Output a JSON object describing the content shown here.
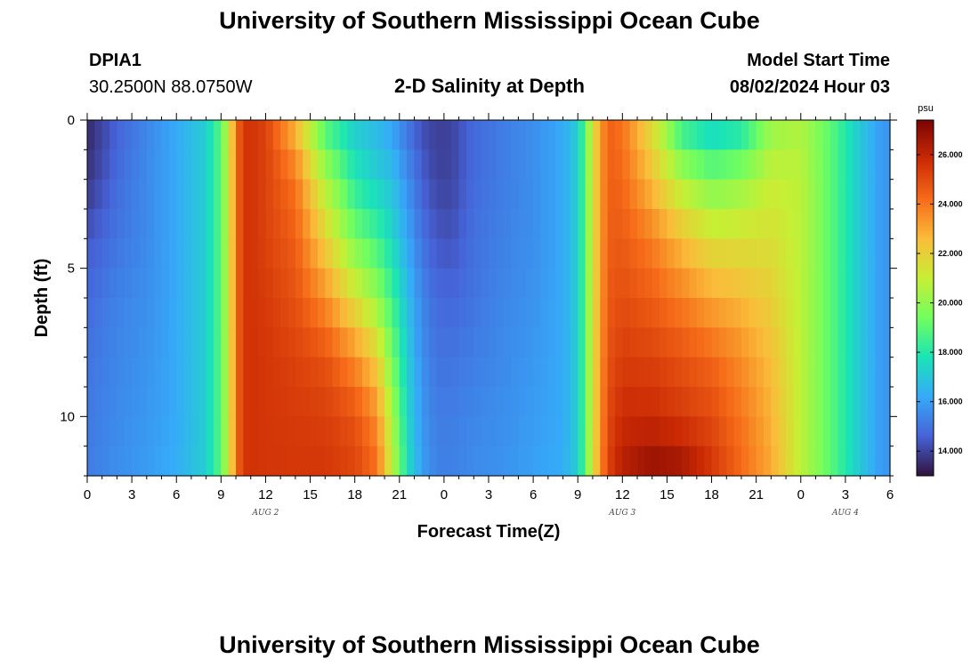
{
  "header": {
    "title": "University of Southern Mississippi Ocean Cube",
    "station": "DPIA1",
    "coords": "30.2500N  88.0750W",
    "plot_title": "2-D Salinity at Depth",
    "start_label": "Model Start Time",
    "start_value": "08/02/2024 Hour 03"
  },
  "footer": {
    "title": "University of Southern Mississippi Ocean Cube"
  },
  "chart_data": {
    "type": "heatmap",
    "title": "2-D Salinity at Depth",
    "xlabel": "Forecast Time(Z)",
    "ylabel": "Depth (ft)",
    "x_tick_labels": [
      "0",
      "3",
      "6",
      "9",
      "12",
      "15",
      "18",
      "21",
      "0",
      "3",
      "6",
      "9",
      "12",
      "15",
      "18",
      "21",
      "0",
      "3",
      "6"
    ],
    "date_labels": [
      {
        "label": "AUG 2",
        "hour": 12
      },
      {
        "label": "AUG 3",
        "hour": 36
      },
      {
        "label": "AUG 4",
        "hour": 51
      }
    ],
    "y_tick_labels": [
      "0",
      "5",
      "10"
    ],
    "x_range_hours": [
      0,
      54
    ],
    "y_range_ft": [
      0,
      12
    ],
    "colorbar": {
      "unit": "psu",
      "min": 13.0,
      "max": 27.4,
      "tick_labels": [
        "14.000",
        "16.000",
        "18.000",
        "20.000",
        "22.000",
        "24.000",
        "26.000"
      ],
      "colors": [
        "#30123b",
        "#4662d7",
        "#36aaf9",
        "#1ae4b6",
        "#72fe5e",
        "#c7ef34",
        "#fabc3a",
        "#f66b19",
        "#cb2a04",
        "#7a0403"
      ]
    },
    "time_hours": [
      0,
      2,
      4,
      6,
      8,
      9,
      9.5,
      10,
      10.5,
      11,
      12,
      14,
      16,
      18,
      19.5,
      20.5,
      21.5,
      22.5,
      23.5,
      24.5,
      26,
      28,
      30,
      32,
      33,
      33.5,
      34,
      35,
      36,
      38,
      40,
      42,
      44,
      46,
      48,
      50,
      52,
      53.5
    ],
    "depth_ft": [
      0,
      2,
      4,
      6,
      8,
      10,
      12
    ],
    "salinity": [
      [
        13.4,
        14.6,
        15.4,
        16.2,
        17.2,
        19.0,
        21.0,
        24.0,
        25.5,
        25.6,
        25.2,
        22.5,
        18.5,
        17.0,
        16.5,
        16.0,
        15.0,
        14.2,
        13.9,
        14.0,
        14.8,
        15.2,
        15.6,
        16.2,
        17.2,
        19.0,
        21.5,
        24.5,
        24.0,
        21.5,
        18.0,
        17.0,
        17.5,
        20.0,
        20.5,
        19.0,
        17.0,
        15.8
      ],
      [
        13.7,
        14.8,
        15.5,
        16.2,
        17.2,
        19.0,
        21.0,
        24.0,
        25.5,
        25.6,
        25.2,
        24.0,
        20.5,
        18.0,
        17.2,
        16.8,
        15.6,
        14.6,
        14.0,
        14.0,
        14.8,
        15.2,
        15.6,
        16.2,
        17.2,
        19.0,
        21.5,
        24.5,
        24.3,
        22.5,
        20.5,
        19.5,
        20.0,
        21.0,
        20.8,
        19.0,
        17.0,
        15.8
      ],
      [
        14.4,
        15.0,
        15.5,
        16.2,
        17.2,
        19.0,
        21.0,
        24.0,
        25.5,
        25.6,
        25.2,
        24.5,
        22.0,
        19.5,
        18.5,
        17.5,
        16.2,
        15.0,
        14.4,
        14.3,
        14.9,
        15.3,
        15.6,
        16.2,
        17.2,
        19.0,
        21.5,
        24.5,
        24.6,
        23.8,
        22.5,
        21.5,
        21.5,
        21.5,
        20.8,
        19.0,
        17.0,
        15.8
      ],
      [
        14.8,
        15.3,
        15.6,
        16.2,
        17.2,
        19.0,
        21.0,
        24.0,
        25.5,
        25.6,
        25.4,
        24.8,
        23.5,
        21.5,
        20.0,
        18.5,
        16.8,
        15.4,
        14.8,
        14.7,
        15.0,
        15.4,
        15.7,
        16.2,
        17.2,
        19.0,
        21.5,
        24.6,
        24.9,
        24.5,
        23.8,
        23.0,
        22.6,
        22.0,
        20.8,
        19.0,
        17.0,
        15.8
      ],
      [
        15.0,
        15.4,
        15.7,
        16.2,
        17.2,
        19.0,
        21.0,
        24.0,
        25.5,
        25.6,
        25.5,
        25.2,
        24.8,
        23.5,
        22.0,
        19.5,
        17.2,
        15.6,
        15.0,
        15.0,
        15.2,
        15.5,
        15.8,
        16.2,
        17.2,
        19.0,
        21.5,
        24.8,
        25.3,
        25.2,
        24.8,
        24.3,
        23.5,
        22.5,
        20.8,
        19.0,
        17.0,
        15.8
      ],
      [
        15.1,
        15.5,
        15.8,
        16.2,
        17.2,
        19.0,
        21.0,
        24.0,
        25.5,
        25.6,
        25.5,
        25.4,
        25.3,
        24.8,
        23.5,
        20.5,
        17.5,
        15.8,
        15.2,
        15.2,
        15.4,
        15.6,
        15.9,
        16.2,
        17.2,
        19.0,
        21.5,
        25.0,
        25.8,
        25.8,
        25.4,
        25.0,
        24.0,
        22.8,
        20.8,
        19.0,
        17.0,
        15.8
      ],
      [
        15.2,
        15.6,
        15.9,
        16.3,
        17.2,
        19.0,
        21.0,
        24.0,
        25.5,
        25.6,
        25.5,
        25.5,
        25.5,
        25.2,
        24.2,
        21.0,
        17.8,
        16.0,
        15.3,
        15.3,
        15.5,
        15.7,
        16.0,
        16.3,
        17.2,
        19.0,
        21.5,
        25.2,
        26.3,
        27.0,
        26.8,
        25.6,
        24.3,
        23.0,
        20.8,
        19.0,
        17.0,
        15.8
      ]
    ]
  }
}
